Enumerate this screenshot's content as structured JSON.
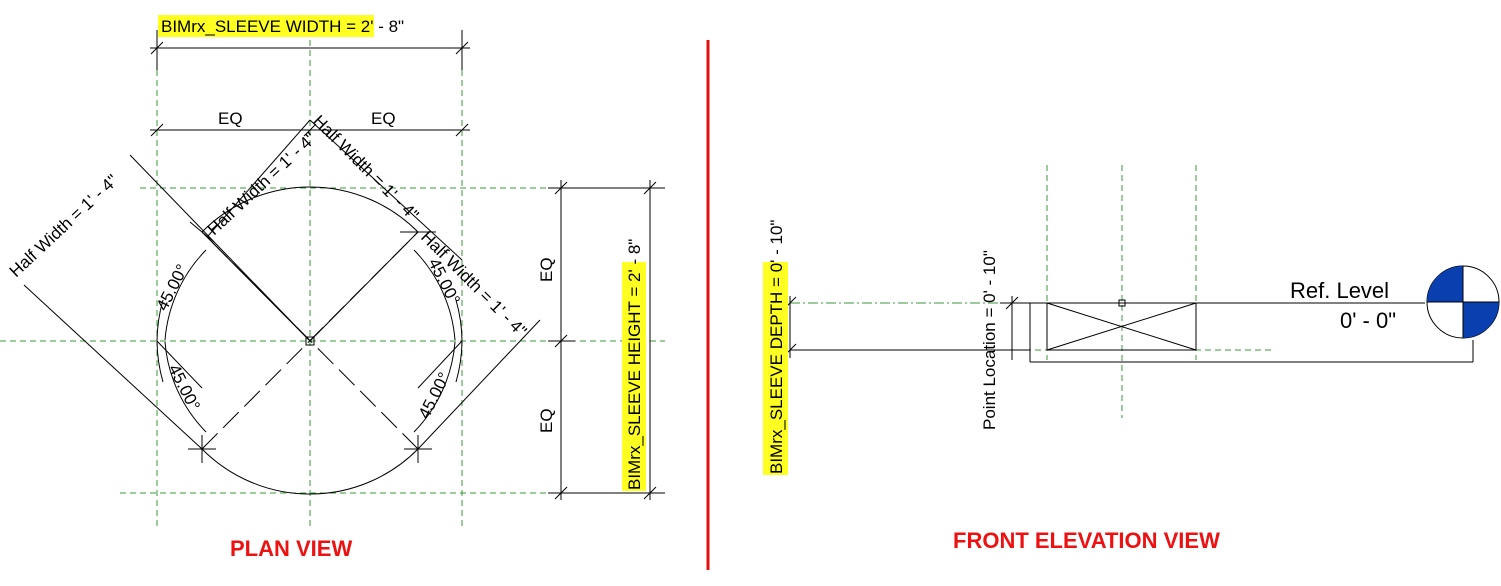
{
  "plan": {
    "width_param": "BIMrx_SLEEVE WIDTH",
    "width_value": " = 2' - 8\"",
    "height_param": "BIMrx_SLEEVE HEIGHT",
    "height_value": " = 2' - 8\"",
    "eq_label": "EQ",
    "half_width_label": "Half Width = 1' - 4\"",
    "angle_label": "45.00°",
    "title": "PLAN VIEW"
  },
  "elevation": {
    "depth_param": "BIMrx_SLEEVE DEPTH",
    "depth_value": " = 0' - 10\"",
    "point_location": "Point Location = 0' - 10\"",
    "level_name": "Ref. Level",
    "level_value": "0' - 0\"",
    "title": "FRONT ELEVATION VIEW"
  },
  "colors": {
    "highlight": "#ffff22",
    "title_red": "#ee1111",
    "reference_green": "#3a9a3a",
    "level_blue": "#0a3fb0"
  }
}
